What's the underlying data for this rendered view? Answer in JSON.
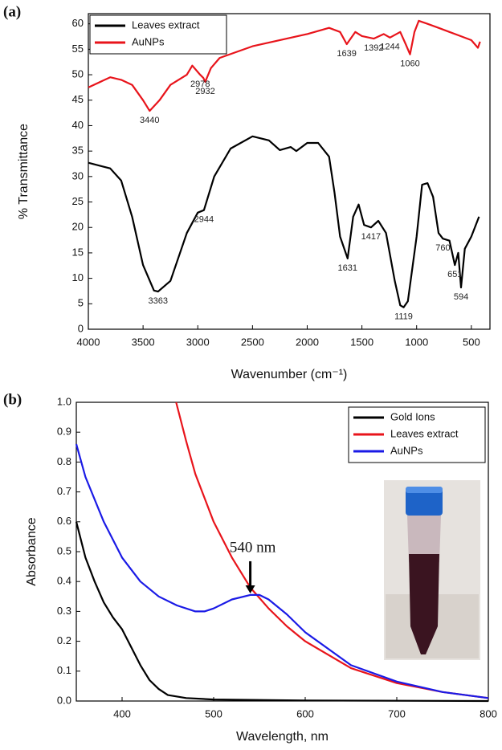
{
  "chart_data": [
    {
      "type": "line",
      "panel_label": "(a)",
      "xlabel": "Wavenumber (cm⁻¹)",
      "ylabel": "% Transmittance",
      "xlim": [
        4000,
        330
      ],
      "ylim": [
        0,
        62
      ],
      "xticks": [
        4000,
        3500,
        3000,
        2500,
        2000,
        1500,
        1000,
        500
      ],
      "yticks": [
        0,
        5,
        10,
        15,
        20,
        25,
        30,
        35,
        40,
        45,
        50,
        55,
        60
      ],
      "legend": "upper left",
      "series": [
        {
          "name": "Leaves extract",
          "color": "#000000",
          "x": [
            4000,
            3800,
            3700,
            3600,
            3500,
            3400,
            3363,
            3250,
            3100,
            3000,
            2944,
            2850,
            2700,
            2500,
            2350,
            2250,
            2150,
            2100,
            2000,
            1900,
            1800,
            1750,
            1700,
            1631,
            1580,
            1530,
            1480,
            1417,
            1350,
            1280,
            1200,
            1150,
            1119,
            1080,
            1000,
            950,
            900,
            850,
            800,
            760,
            700,
            651,
            620,
            594,
            560,
            500,
            430
          ],
          "values": [
            32.7,
            31.6,
            29.2,
            22.1,
            12.6,
            7.6,
            7.4,
            9.5,
            18.9,
            22.9,
            23.4,
            30,
            35.5,
            37.9,
            37.1,
            35.2,
            35.8,
            35,
            36.6,
            36.6,
            33.9,
            26.8,
            18.2,
            13.9,
            22.1,
            24.5,
            20.5,
            20,
            21.3,
            18.9,
            9.5,
            4.7,
            4.3,
            5.5,
            18.2,
            28.4,
            28.7,
            26,
            18.9,
            17.8,
            17.4,
            12.6,
            15,
            8.2,
            15.8,
            18.2,
            22.1
          ]
        },
        {
          "name": "AuNPs",
          "color": "#e8141b",
          "x": [
            4000,
            3800,
            3700,
            3600,
            3500,
            3440,
            3350,
            3250,
            3100,
            3050,
            2978,
            2950,
            2932,
            2880,
            2800,
            2500,
            2000,
            1800,
            1700,
            1639,
            1560,
            1500,
            1392,
            1300,
            1244,
            1150,
            1100,
            1060,
            1020,
            980,
            900,
            800,
            700,
            600,
            500,
            440,
            420
          ],
          "values": [
            47.5,
            49.5,
            49,
            48,
            45,
            42.9,
            45,
            48,
            50,
            51.8,
            50,
            49.4,
            48.6,
            51.3,
            53.3,
            55.6,
            58,
            59.2,
            58.4,
            56,
            58.4,
            57.6,
            57.1,
            58,
            57.3,
            58.4,
            56,
            54,
            58.4,
            60.6,
            60,
            59.2,
            58.4,
            57.6,
            56.8,
            55.3,
            56.5
          ]
        }
      ],
      "annotations": [
        {
          "x": 3363,
          "y": 7.4
        },
        {
          "x": 2944,
          "y": 23.4
        },
        {
          "x": 1631,
          "y": 13.9
        },
        {
          "x": 1417,
          "y": 20
        },
        {
          "x": 1119,
          "y": 4.3
        },
        {
          "x": 760,
          "y": 17.8
        },
        {
          "x": 651,
          "y": 12.6
        },
        {
          "x": 594,
          "y": 8.2
        },
        {
          "x": 3440,
          "y": 42.9
        },
        {
          "x": 2978,
          "y": 50
        },
        {
          "x": 2932,
          "y": 48.6
        },
        {
          "x": 1639,
          "y": 56
        },
        {
          "x": 1392,
          "y": 57.1
        },
        {
          "x": 1244,
          "y": 57.3
        },
        {
          "x": 1060,
          "y": 54
        }
      ]
    },
    {
      "type": "line",
      "panel_label": "(b)",
      "xlabel": "Wavelength, nm",
      "ylabel": "Absorbance",
      "xlim": [
        350,
        800
      ],
      "ylim": [
        0,
        1
      ],
      "xticks": [
        400,
        500,
        600,
        700,
        800
      ],
      "yticks": [
        {
          "value": 0,
          "label": "0.0"
        },
        0.1,
        0.2,
        0.3,
        0.4,
        0.5,
        0.6,
        0.7,
        0.8,
        0.9,
        {
          "value": 1,
          "label": "1.0"
        }
      ],
      "legend": "upper right",
      "series": [
        {
          "name": "Gold Ions",
          "color": "#000000",
          "x": [
            350,
            360,
            370,
            380,
            390,
            400,
            410,
            420,
            430,
            440,
            450,
            470,
            500,
            600,
            800
          ],
          "values": [
            0.6,
            0.48,
            0.4,
            0.33,
            0.28,
            0.24,
            0.18,
            0.12,
            0.07,
            0.04,
            0.02,
            0.01,
            0.005,
            0.002,
            0
          ]
        },
        {
          "name": "Leaves extract",
          "color": "#e8141b",
          "x": [
            459,
            470,
            480,
            500,
            520,
            540,
            560,
            580,
            600,
            650,
            700,
            750,
            800
          ],
          "values": [
            1,
            0.87,
            0.76,
            0.6,
            0.48,
            0.38,
            0.31,
            0.25,
            0.2,
            0.11,
            0.06,
            0.03,
            0.01
          ]
        },
        {
          "name": "AuNPs",
          "color": "#1a1ae6",
          "x": [
            350,
            360,
            380,
            400,
            420,
            440,
            460,
            480,
            490,
            500,
            520,
            540,
            550,
            560,
            580,
            600,
            650,
            700,
            750,
            800
          ],
          "values": [
            0.86,
            0.75,
            0.6,
            0.48,
            0.4,
            0.35,
            0.32,
            0.3,
            0.3,
            0.31,
            0.34,
            0.355,
            0.355,
            0.34,
            0.29,
            0.23,
            0.12,
            0.065,
            0.03,
            0.01
          ]
        }
      ],
      "annotations": [
        {
          "text": "540 nm",
          "x": 540,
          "y": 0.355
        }
      ]
    }
  ]
}
